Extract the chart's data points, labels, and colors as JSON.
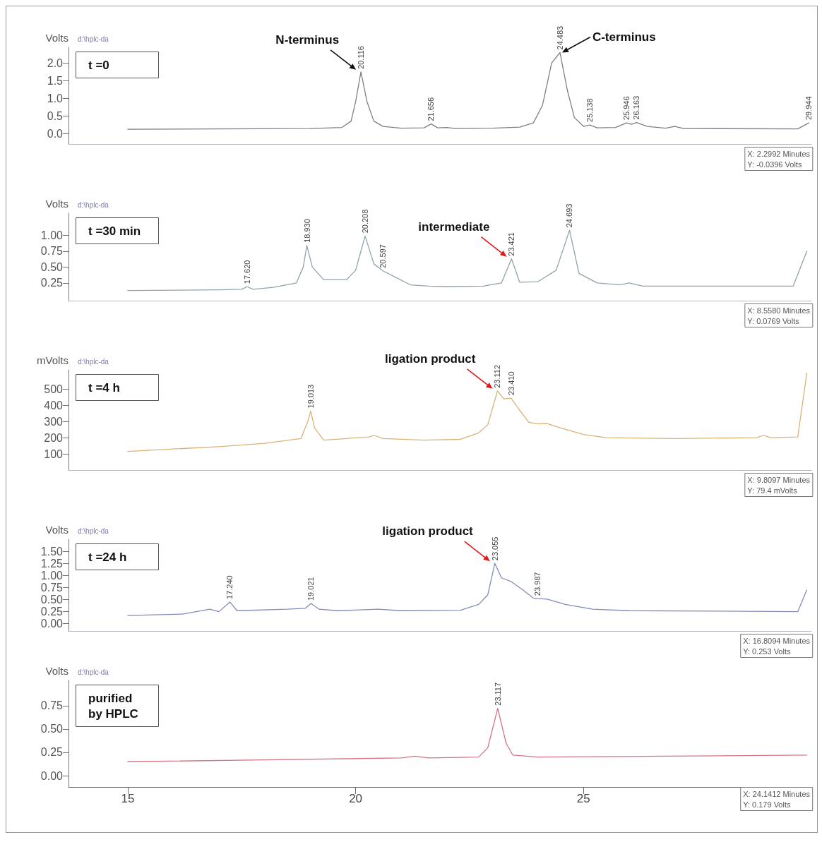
{
  "chart_data": [
    {
      "type": "line",
      "title": "t =0",
      "subtitle": "d:\\hplc-da",
      "ylabel": "Volts",
      "xlim": [
        13.7,
        30
      ],
      "grid": false,
      "ylim": [
        -0.3,
        2.45
      ],
      "yticks": [
        {
          "value": 0,
          "label": "0.0"
        },
        {
          "value": 0.5,
          "label": "0.5"
        },
        {
          "value": 1,
          "label": "1.0"
        },
        {
          "value": 1.5,
          "label": "1.5"
        },
        {
          "value": 2,
          "label": "2.0"
        }
      ],
      "tick_labels": "y",
      "marker": "none",
      "line_style": "solid",
      "series": [
        {
          "color": "#7c7f88",
          "x": [
            15,
            17,
            19,
            19.7,
            19.9,
            20.0,
            20.116,
            20.25,
            20.4,
            20.6,
            21.0,
            21.5,
            21.656,
            21.8,
            22.0,
            22.2,
            23.0,
            23.6,
            23.9,
            24.1,
            24.3,
            24.483,
            24.65,
            24.8,
            25.0,
            25.138,
            25.3,
            25.7,
            25.946,
            26.05,
            26.163,
            26.4,
            26.8,
            27.0,
            27.2,
            29.7,
            29.944
          ],
          "values": [
            0.12,
            0.13,
            0.14,
            0.17,
            0.35,
            0.9,
            1.75,
            0.9,
            0.35,
            0.2,
            0.15,
            0.16,
            0.27,
            0.16,
            0.17,
            0.14,
            0.15,
            0.18,
            0.3,
            0.8,
            2.0,
            2.3,
            1.2,
            0.45,
            0.2,
            0.24,
            0.16,
            0.17,
            0.3,
            0.26,
            0.31,
            0.2,
            0.15,
            0.2,
            0.14,
            0.13,
            0.3
          ]
        }
      ],
      "annotations": [
        {
          "text": "20.116",
          "x": 20.116,
          "y": 1.75
        },
        {
          "text": "21.656",
          "x": 21.656,
          "y": 0.27
        },
        {
          "text": "24.483",
          "x": 24.483,
          "y": 2.3
        },
        {
          "text": "25.138",
          "x": 25.138,
          "y": 0.24
        },
        {
          "text": "25.946",
          "x": 25.946,
          "y": 0.3
        },
        {
          "text": "26.163",
          "x": 26.163,
          "y": 0.31
        },
        {
          "text": "29.944",
          "x": 29.944,
          "y": 0.3
        },
        {
          "text": "N-terminus",
          "x": 20.116,
          "y": 1.75
        },
        {
          "text": "C-terminus",
          "x": 24.483,
          "y": 2.3
        },
        "X: 2.2992 Minutes",
        "Y: -0.0396 Volts"
      ]
    },
    {
      "type": "line",
      "title": "t =30 min",
      "subtitle": "d:\\hplc-da",
      "ylabel": "Volts",
      "xlim": [
        13.7,
        30
      ],
      "grid": false,
      "ylim": [
        -0.03,
        1.35
      ],
      "yticks": [
        {
          "value": 0.25,
          "label": "0.25"
        },
        {
          "value": 0.5,
          "label": "0.50"
        },
        {
          "value": 0.75,
          "label": "0.75"
        },
        {
          "value": 1,
          "label": "1.00"
        }
      ],
      "tick_labels": "y",
      "marker": "none",
      "line_style": "solid",
      "series": [
        {
          "color": "#8fa3aa",
          "x": [
            15,
            17,
            17.5,
            17.62,
            17.75,
            18.2,
            18.7,
            18.85,
            18.93,
            19.05,
            19.3,
            19.8,
            20.0,
            20.208,
            20.4,
            20.597,
            20.9,
            21.2,
            21.6,
            22.0,
            22.8,
            23.2,
            23.421,
            23.6,
            24.0,
            24.4,
            24.693,
            24.9,
            25.3,
            25.8,
            26.0,
            26.3,
            29.6,
            29.9
          ],
          "values": [
            0.13,
            0.14,
            0.15,
            0.19,
            0.15,
            0.18,
            0.25,
            0.5,
            0.84,
            0.5,
            0.3,
            0.3,
            0.45,
            0.99,
            0.55,
            0.44,
            0.33,
            0.22,
            0.2,
            0.19,
            0.2,
            0.25,
            0.63,
            0.26,
            0.27,
            0.45,
            1.08,
            0.4,
            0.25,
            0.22,
            0.25,
            0.2,
            0.2,
            0.75
          ]
        }
      ],
      "annotations": [
        {
          "text": "17.620",
          "x": 17.62,
          "y": 0.19
        },
        {
          "text": "18.930",
          "x": 18.93,
          "y": 0.84
        },
        {
          "text": "20.208",
          "x": 20.208,
          "y": 0.99
        },
        {
          "text": "20.597",
          "x": 20.597,
          "y": 0.44
        },
        {
          "text": "23.421",
          "x": 23.421,
          "y": 0.63
        },
        {
          "text": "24.693",
          "x": 24.693,
          "y": 1.08
        },
        {
          "text": "intermediate",
          "x": 23.421,
          "y": 0.63
        },
        "X: 8.5580 Minutes",
        "Y: 0.0769 Volts"
      ]
    },
    {
      "type": "line",
      "title": "t =4 h",
      "subtitle": "d:\\hplc-da",
      "ylabel": "mVolts",
      "xlim": [
        13.7,
        30
      ],
      "grid": false,
      "ylim": [
        0,
        620
      ],
      "yticks": [
        100,
        200,
        300,
        400,
        500
      ],
      "tick_labels": "y",
      "marker": "none",
      "line_style": "solid",
      "series": [
        {
          "color": "#d9b278",
          "x": [
            15,
            16,
            17,
            18,
            18.8,
            18.95,
            19.013,
            19.1,
            19.3,
            19.8,
            20.0,
            20.3,
            20.4,
            20.6,
            21.5,
            22.3,
            22.7,
            22.9,
            23.112,
            23.25,
            23.41,
            23.6,
            23.8,
            24.0,
            24.2,
            24.5,
            25.0,
            25.5,
            27,
            28.8,
            28.95,
            29.1,
            29.7,
            29.9
          ],
          "values": [
            115,
            130,
            145,
            165,
            195,
            300,
            365,
            260,
            185,
            195,
            200,
            205,
            215,
            195,
            185,
            190,
            230,
            280,
            490,
            440,
            445,
            370,
            295,
            285,
            288,
            260,
            220,
            200,
            195,
            200,
            215,
            200,
            205,
            600
          ]
        }
      ],
      "annotations": [
        {
          "text": "19.013",
          "x": 19.013,
          "y": 365
        },
        {
          "text": "23.112",
          "x": 23.112,
          "y": 490
        },
        {
          "text": "23.410",
          "x": 23.41,
          "y": 445
        },
        {
          "text": "ligation product",
          "x": 23.112,
          "y": 490
        },
        "X: 9.8097 Minutes",
        "Y: 79.4 mVolts"
      ]
    },
    {
      "type": "line",
      "title": "t =24 h",
      "subtitle": "d:\\hplc-da",
      "ylabel": "Volts",
      "xlim": [
        13.7,
        30
      ],
      "grid": false,
      "ylim": [
        -0.15,
        1.75
      ],
      "yticks": [
        {
          "value": 0,
          "label": "0.00"
        },
        {
          "value": 0.25,
          "label": "0.25"
        },
        {
          "value": 0.5,
          "label": "0.50"
        },
        {
          "value": 0.75,
          "label": "0.75"
        },
        {
          "value": 1,
          "label": "1.00"
        },
        {
          "value": 1.25,
          "label": "1.25"
        },
        {
          "value": 1.5,
          "label": "1.50"
        }
      ],
      "tick_labels": "y",
      "marker": "none",
      "line_style": "solid",
      "series": [
        {
          "color": "#838bb8",
          "x": [
            15,
            16.2,
            16.8,
            17.0,
            17.24,
            17.4,
            18.5,
            18.9,
            19.021,
            19.2,
            19.6,
            20.5,
            21,
            22.3,
            22.7,
            22.9,
            23.055,
            23.2,
            23.4,
            23.7,
            23.9,
            23.987,
            24.2,
            24.6,
            25.2,
            26,
            28,
            29.7,
            29.9
          ],
          "values": [
            0.17,
            0.2,
            0.3,
            0.25,
            0.45,
            0.27,
            0.3,
            0.32,
            0.42,
            0.3,
            0.27,
            0.3,
            0.27,
            0.28,
            0.4,
            0.6,
            1.25,
            0.95,
            0.88,
            0.68,
            0.53,
            0.52,
            0.51,
            0.4,
            0.3,
            0.27,
            0.26,
            0.25,
            0.7
          ]
        }
      ],
      "annotations": [
        {
          "text": "17.240",
          "x": 17.24,
          "y": 0.45
        },
        {
          "text": "19.021",
          "x": 19.021,
          "y": 0.42
        },
        {
          "text": "23.055",
          "x": 23.055,
          "y": 1.25
        },
        {
          "text": "23.987",
          "x": 23.987,
          "y": 0.52
        },
        {
          "text": "ligation product",
          "x": 23.055,
          "y": 1.25
        },
        "X: 16.8094 Minutes",
        "Y: 0.253 Volts"
      ]
    },
    {
      "type": "line",
      "title": "purified by HPLC",
      "subtitle": "d:\\hplc-da",
      "ylabel": "Volts",
      "grid": false,
      "xlim": [
        13.7,
        30
      ],
      "xticks": [
        15,
        20,
        25
      ],
      "ylim": [
        -0.12,
        1.02
      ],
      "yticks": [
        {
          "value": 0,
          "label": "0.00"
        },
        {
          "value": 0.25,
          "label": "0.25"
        },
        {
          "value": 0.5,
          "label": "0.50"
        },
        {
          "value": 0.75,
          "label": "0.75"
        }
      ],
      "marker": "none",
      "line_style": "solid",
      "series": [
        {
          "color": "#d57384",
          "x": [
            15,
            18,
            21,
            21.3,
            21.6,
            22.7,
            22.9,
            23.117,
            23.3,
            23.45,
            24,
            29.9
          ],
          "values": [
            0.15,
            0.17,
            0.19,
            0.21,
            0.19,
            0.2,
            0.3,
            0.72,
            0.35,
            0.22,
            0.2,
            0.22
          ]
        }
      ],
      "annotations": [
        {
          "text": "23.117",
          "x": 23.117,
          "y": 0.72
        },
        "X: 24.1412 Minutes",
        "Y: 0.179 Volts"
      ]
    }
  ]
}
